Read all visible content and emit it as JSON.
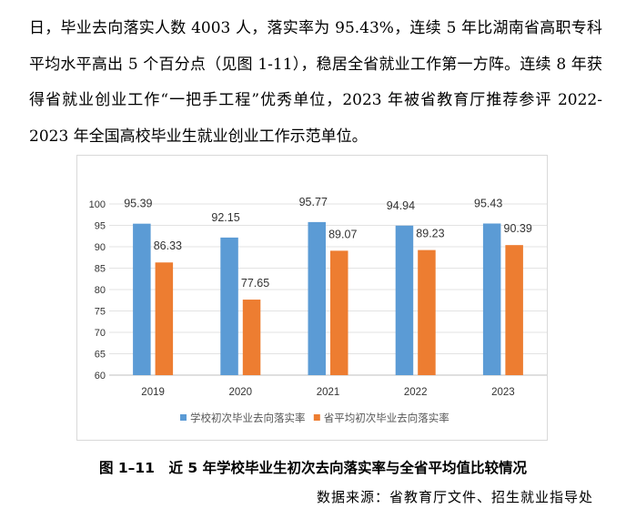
{
  "paragraph": "日，毕业去向落实人数 4003 人，落实率为 95.43%，连续 5 年比湖南省高职专科平均水平高出 5 个百分点（见图 1-11），稳居全省就业工作第一方阵。连续 8 年获得省就业创业工作“一把手工程”优秀单位，2023 年被省教育厅推荐参评 2022-2023 年全国高校毕业生就业创业工作示范单位。",
  "caption": "图 1–11　近 5 年学校毕业生初次去向落实率与全省平均值比较情况",
  "source": "数据来源：省教育厅文件、招生就业指导处",
  "chart_data": {
    "type": "bar",
    "categories": [
      "2019",
      "2020",
      "2021",
      "2022",
      "2023"
    ],
    "series": [
      {
        "name": "学校初次毕业去向落实率",
        "values": [
          95.39,
          92.15,
          95.77,
          94.94,
          95.43
        ],
        "color": "#5b9bd5"
      },
      {
        "name": "省平均初次毕业去向落实率",
        "values": [
          86.33,
          77.65,
          89.07,
          89.23,
          90.39
        ],
        "color": "#ed7d31"
      }
    ],
    "ylim": [
      60,
      100
    ],
    "yticks": [
      60,
      65,
      70,
      75,
      80,
      85,
      90,
      95,
      100
    ],
    "grid": true,
    "legend": "bottom"
  }
}
